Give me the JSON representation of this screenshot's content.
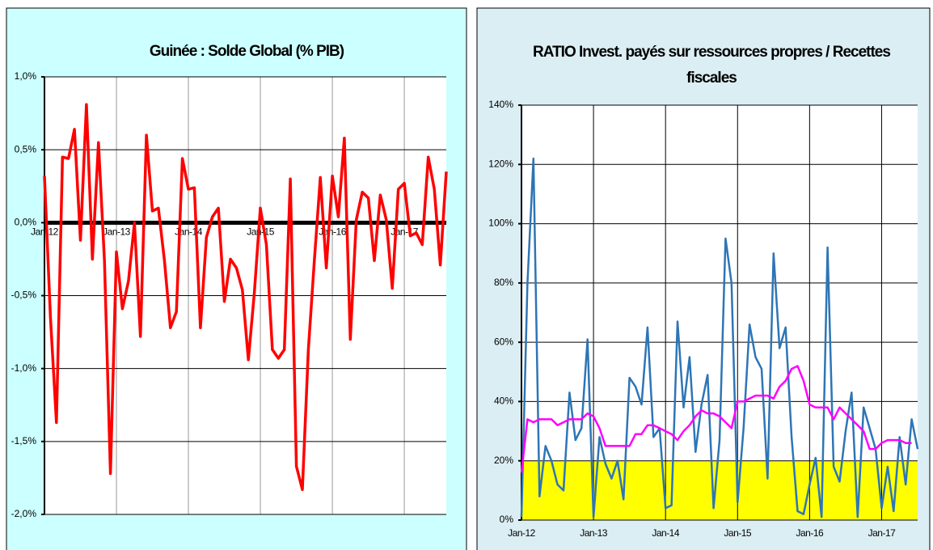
{
  "chart_data": [
    {
      "type": "line",
      "title": "Guinée : Solde Global (% PIB)",
      "categories": [
        "Jan-12",
        null,
        null,
        null,
        null,
        null,
        null,
        null,
        null,
        null,
        null,
        null,
        "Jan-13",
        null,
        null,
        null,
        null,
        null,
        null,
        null,
        null,
        null,
        null,
        null,
        "Jan-14",
        null,
        null,
        null,
        null,
        null,
        null,
        null,
        null,
        null,
        null,
        null,
        "Jan-15",
        null,
        null,
        null,
        null,
        null,
        null,
        null,
        null,
        null,
        null,
        null,
        "Jan-16",
        null,
        null,
        null,
        null,
        null,
        null,
        null,
        null,
        null,
        null,
        null,
        "Jan-17",
        null,
        null,
        null,
        null,
        null,
        null,
        null
      ],
      "series": [
        {
          "color": "#ff0000",
          "values": [
            0.32,
            -0.65,
            -1.37,
            0.45,
            0.44,
            0.64,
            -0.12,
            0.81,
            -0.25,
            0.55,
            -0.26,
            -1.72,
            -0.2,
            -0.59,
            -0.4,
            0,
            -0.78,
            0.6,
            0.08,
            0.1,
            -0.26,
            -0.72,
            -0.61,
            0.44,
            0.23,
            0.24,
            -0.72,
            -0.1,
            0.04,
            0.1,
            -0.54,
            -0.25,
            -0.31,
            -0.46,
            -0.94,
            -0.48,
            0.1,
            -0.15,
            -0.87,
            -0.93,
            -0.87,
            0.3,
            -1.67,
            -1.83,
            -0.87,
            -0.26,
            0.31,
            -0.31,
            0.32,
            0.04,
            0.58,
            -0.8,
            0.02,
            0.21,
            0.17,
            -0.26,
            0.19,
            0.02,
            -0.45,
            0.23,
            0.27,
            -0.09,
            -0.07,
            -0.15,
            0.45,
            0.23,
            -0.29,
            0.35
          ]
        }
      ],
      "ylim": [
        -2,
        1
      ],
      "yticks": [
        {
          "value": -2,
          "label": "-2,0%"
        },
        {
          "value": -1.5,
          "label": "-1,5%"
        },
        {
          "value": -1,
          "label": "-1,0%"
        },
        {
          "value": -0.5,
          "label": "-0,5%"
        },
        {
          "value": 0,
          "label": "0,0%"
        },
        {
          "value": 0.5,
          "label": "0,5%"
        },
        {
          "value": 1,
          "label": "1,0%"
        }
      ],
      "grid": true,
      "zero_line": true,
      "background": "#ccffff"
    },
    {
      "type": "line",
      "title": "RATIO Invest. payés sur ressources propres / Recettes fiscales",
      "categories": [
        "Jan-12",
        null,
        null,
        null,
        null,
        null,
        null,
        null,
        null,
        null,
        null,
        null,
        "Jan-13",
        null,
        null,
        null,
        null,
        null,
        null,
        null,
        null,
        null,
        null,
        null,
        "Jan-14",
        null,
        null,
        null,
        null,
        null,
        null,
        null,
        null,
        null,
        null,
        null,
        "Jan-15",
        null,
        null,
        null,
        null,
        null,
        null,
        null,
        null,
        null,
        null,
        null,
        "Jan-16",
        null,
        null,
        null,
        null,
        null,
        null,
        null,
        null,
        null,
        null,
        null,
        "Jan-17",
        null,
        null,
        null,
        null,
        null,
        null
      ],
      "series": [
        {
          "color": "#2e75b6",
          "values": [
            1,
            80,
            122,
            8,
            25,
            20,
            12,
            10,
            43,
            27,
            31,
            61,
            1,
            28,
            19,
            14,
            20,
            7,
            48,
            45,
            39,
            65,
            28,
            31,
            4,
            5,
            67,
            38,
            55,
            23,
            39,
            49,
            4,
            27,
            95,
            80,
            6,
            31,
            66,
            55,
            51,
            14,
            90,
            58,
            65,
            28,
            3,
            2,
            12,
            21,
            1,
            92,
            18,
            13,
            30,
            43,
            1,
            38,
            31,
            24,
            4,
            18,
            3,
            28,
            12,
            34,
            24
          ]
        },
        {
          "color": "#ff00ff",
          "values": [
            16,
            34,
            33,
            34,
            34,
            34,
            32,
            33,
            34,
            34,
            34,
            36,
            35,
            31,
            25,
            25,
            25,
            25,
            25,
            29,
            29,
            32,
            32,
            31,
            30,
            29,
            27,
            30,
            32,
            35,
            37,
            36,
            36,
            35,
            33,
            31,
            40,
            40,
            41,
            42,
            42,
            42,
            41,
            45,
            47,
            51,
            52,
            47,
            39,
            38,
            38,
            38,
            34,
            38,
            36,
            34,
            32,
            30,
            24,
            24,
            26,
            27,
            27,
            27,
            26,
            26,
            null
          ]
        }
      ],
      "ylim": [
        0,
        140
      ],
      "yticks": [
        {
          "value": 0,
          "label": "0%"
        },
        {
          "value": 20,
          "label": "20%"
        },
        {
          "value": 40,
          "label": "40%"
        },
        {
          "value": 60,
          "label": "60%"
        },
        {
          "value": 80,
          "label": "80%"
        },
        {
          "value": 100,
          "label": "100%"
        },
        {
          "value": 120,
          "label": "120%"
        },
        {
          "value": 140,
          "label": "140%"
        }
      ],
      "grid": true,
      "band": {
        "from": 0,
        "to": 20,
        "color": "#ffff00"
      },
      "background": "#dbeef4"
    }
  ]
}
